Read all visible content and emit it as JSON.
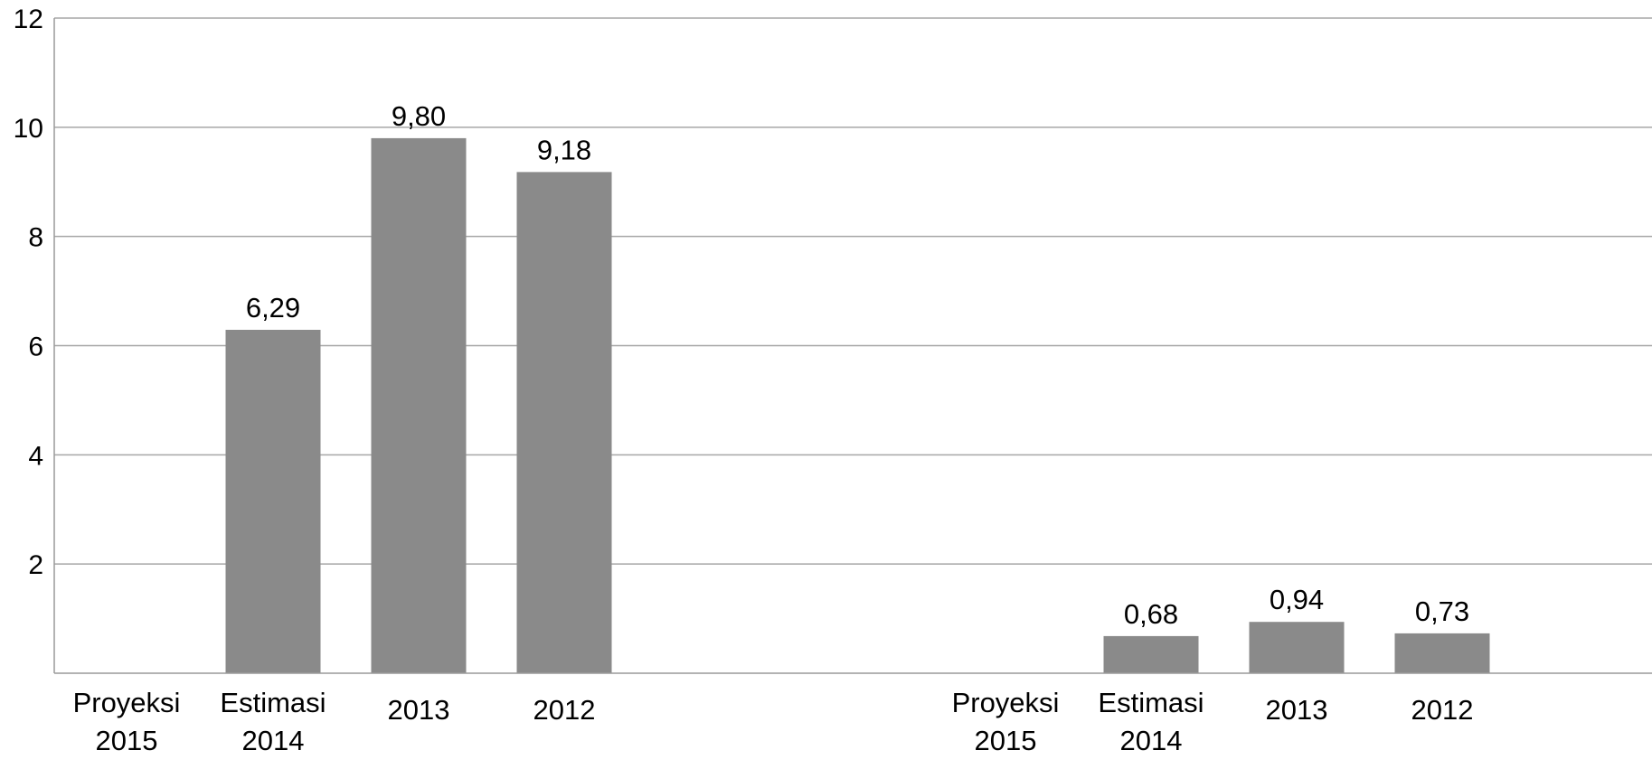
{
  "chart_data": {
    "type": "bar",
    "ylim": [
      0,
      12
    ],
    "yticks": [
      2,
      4,
      6,
      8,
      10,
      12
    ],
    "grid": true,
    "bar_color": "#8a8a8a",
    "groups": [
      {
        "categories": [
          [
            "Proyeksi",
            "2015"
          ],
          [
            "Estimasi",
            "2014"
          ],
          [
            "2013"
          ],
          [
            "2012"
          ]
        ],
        "values": [
          null,
          6.29,
          9.8,
          9.18
        ],
        "labels": [
          "",
          "6,29",
          "9,80",
          "9,18"
        ]
      },
      {
        "categories": [
          [
            "Proyeksi",
            "2015"
          ],
          [
            "Estimasi",
            "2014"
          ],
          [
            "2013"
          ],
          [
            "2012"
          ]
        ],
        "values": [
          null,
          0.68,
          0.94,
          0.73
        ],
        "labels": [
          "",
          "0,68",
          "0,94",
          "0,73"
        ]
      }
    ]
  }
}
